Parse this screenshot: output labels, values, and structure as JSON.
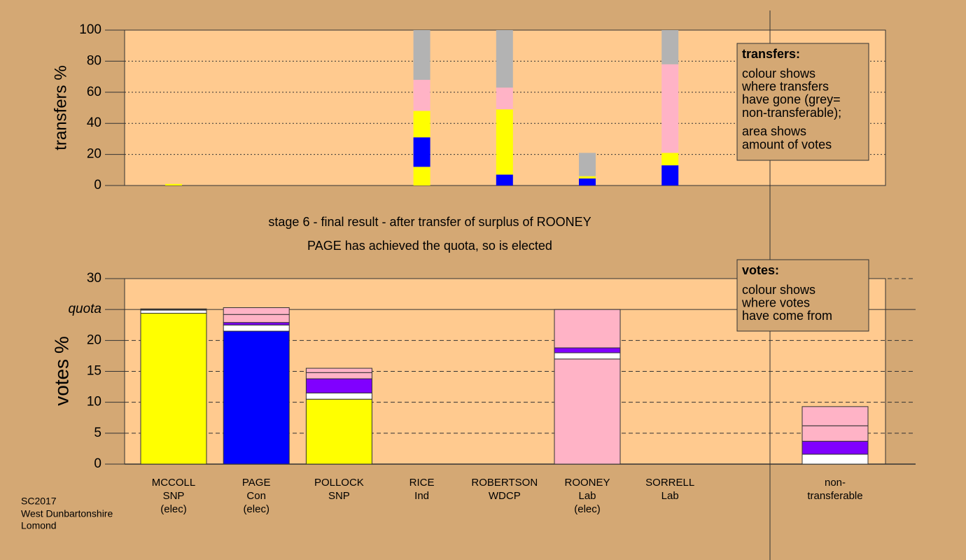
{
  "chart_data": [
    {
      "type": "stacked-bar",
      "y_label": "transfers %",
      "ylim": [
        0,
        100
      ],
      "yticks": [
        0,
        20,
        40,
        60,
        80,
        100
      ],
      "grid": true,
      "series": [
        {
          "color": "#ffff00",
          "values": [
            1,
            0,
            0,
            12,
            0,
            0,
            0,
            0
          ]
        },
        {
          "color": "#0000ff",
          "values": [
            0,
            0,
            0,
            19,
            7,
            4.5,
            13,
            0
          ]
        },
        {
          "color": "#ffff00",
          "values": [
            0,
            0,
            0,
            17,
            42,
            1.5,
            8,
            0
          ]
        },
        {
          "color": "#ffb3c6",
          "values": [
            0,
            0,
            0,
            20,
            14,
            0,
            57,
            0
          ]
        },
        {
          "color": "#b3b3b3",
          "values": [
            0,
            0,
            0,
            32,
            37,
            15,
            22,
            0
          ]
        }
      ],
      "note": {
        "title": "transfers:",
        "lines": [
          [
            "colour shows",
            "where transfers",
            "have gone (grey=",
            "non-transferable);"
          ],
          [
            "area shows",
            "amount of votes"
          ]
        ]
      }
    },
    {
      "type": "stacked-bar",
      "y_label": "votes %",
      "title": "stage 6 - final result - after transfer of surplus of ROONEY",
      "subtitle": "PAGE has achieved the quota, so is elected",
      "categories": [
        [
          "MCCOLL",
          "SNP",
          "(elec)"
        ],
        [
          "PAGE",
          "Con",
          "(elec)"
        ],
        [
          "POLLOCK",
          "SNP"
        ],
        [
          "RICE",
          "Ind"
        ],
        [
          "ROBERTSON",
          "WDCP"
        ],
        [
          "ROONEY",
          "Lab",
          "(elec)"
        ],
        [
          "SORRELL",
          "Lab"
        ],
        [
          "non-",
          "transferable"
        ]
      ],
      "ylim": [
        0,
        30
      ],
      "yticks": [
        0,
        5,
        10,
        15,
        20,
        {
          "value": 25,
          "label": "quota"
        },
        30
      ],
      "grid": true,
      "series": [
        {
          "colors": [
            "#ffff00",
            "#0000ff",
            "#ffff00",
            "#8000ff",
            "#ffb3c6",
            "#ffb3c6",
            "#ffb3c6",
            "#ffffff"
          ],
          "values": [
            24.4,
            21.5,
            10.5,
            0,
            0,
            17,
            0,
            0
          ]
        },
        {
          "color": "#ffffff",
          "values": [
            0.5,
            1.0,
            1.0,
            0,
            0,
            1.0,
            0,
            1.6
          ]
        },
        {
          "color": "#8000ff",
          "values": [
            0,
            0.4,
            2.3,
            0,
            0,
            0.8,
            0,
            2.1
          ]
        },
        {
          "color": "#ffb3c6",
          "values": [
            0.1,
            1.3,
            1.0,
            0,
            0,
            6.2,
            0,
            2.5
          ]
        },
        {
          "color": "#ffb3c6",
          "values": [
            0.1,
            1.1,
            0.7,
            0,
            0,
            0,
            0,
            3.1
          ]
        }
      ],
      "note": {
        "title": "votes:",
        "lines": [
          [
            "colour shows",
            "where votes",
            "have come from"
          ]
        ]
      }
    }
  ],
  "footer": [
    "SC2017",
    "West Dunbartonshire",
    "Lomond"
  ]
}
